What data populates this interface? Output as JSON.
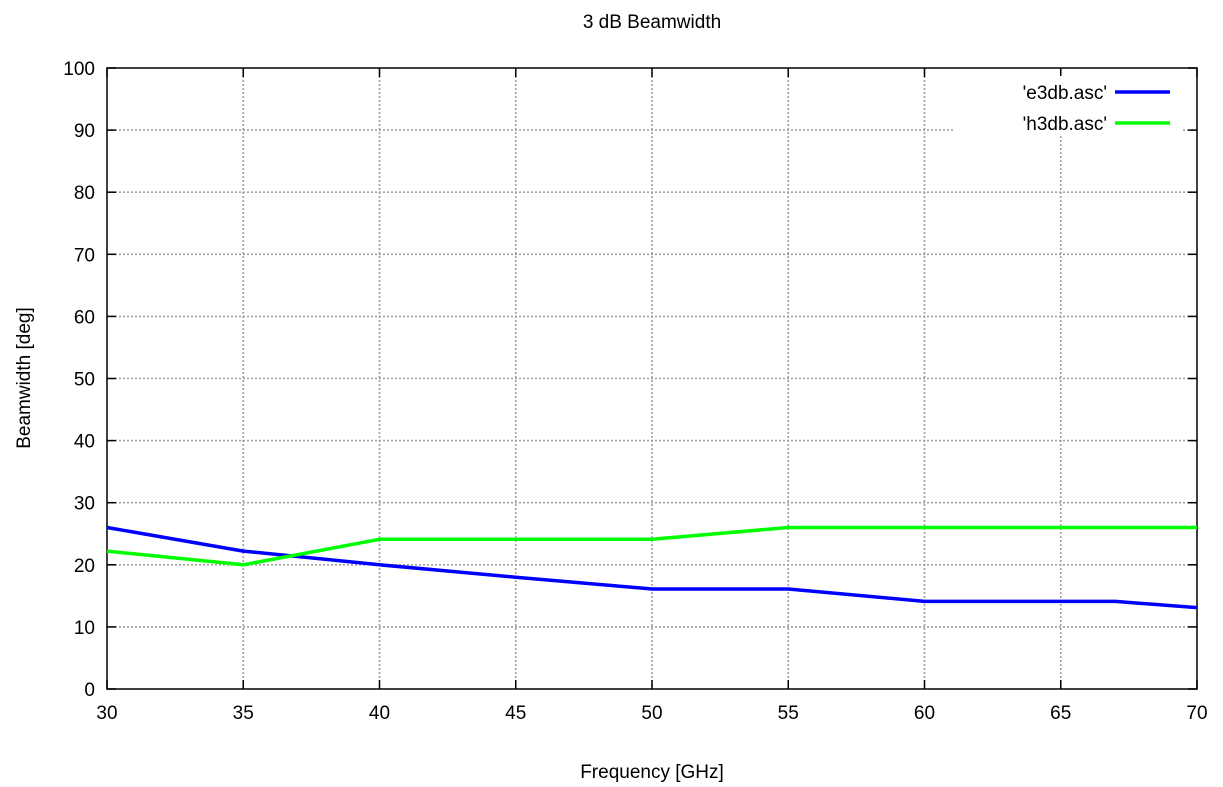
{
  "chart_data": {
    "type": "line",
    "title": "3 dB Beamwidth",
    "xlabel": "Frequency [GHz]",
    "ylabel": "Beamwidth [deg]",
    "xlim": [
      30,
      70
    ],
    "ylim": [
      0,
      100
    ],
    "xticks": [
      30,
      35,
      40,
      45,
      50,
      55,
      60,
      65,
      70
    ],
    "yticks": [
      0,
      10,
      20,
      30,
      40,
      50,
      60,
      70,
      80,
      90,
      100
    ],
    "grid": true,
    "legend_position": "top-right",
    "series": [
      {
        "name": "'e3db.asc'",
        "color": "#0000ff",
        "x": [
          30,
          35,
          40,
          45,
          50,
          55,
          60,
          67,
          70
        ],
        "y": [
          26,
          22.2,
          20,
          18,
          16.1,
          16.1,
          14.1,
          14.1,
          13.1
        ]
      },
      {
        "name": "'h3db.asc'",
        "color": "#00ff00",
        "x": [
          30,
          35,
          40,
          50,
          55,
          70
        ],
        "y": [
          22.2,
          20,
          24.1,
          24.1,
          26,
          26
        ]
      }
    ]
  }
}
